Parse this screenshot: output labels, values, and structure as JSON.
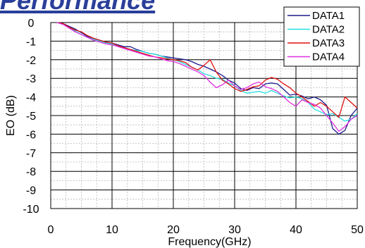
{
  "title_fragment": "Performance",
  "chart_data": {
    "type": "line",
    "xlabel": "Frequency(GHz)",
    "ylabel": "EO (dB)",
    "xlim": [
      0,
      50
    ],
    "ylim": [
      -10,
      0
    ],
    "xticks": [
      0,
      10,
      20,
      30,
      40,
      50
    ],
    "yticks": [
      0,
      -1,
      -2,
      -3,
      -4,
      -5,
      -6,
      -7,
      -8,
      -9,
      -10
    ],
    "x_minor_step": 2.5,
    "y_minor_step": 0.5,
    "grid": true,
    "legend_position": "top-right",
    "series": [
      {
        "name": "DATA1",
        "color": "#1c1c8c",
        "x": [
          1,
          2,
          3,
          4,
          5,
          6,
          7,
          8,
          9,
          10,
          11,
          12,
          13,
          14,
          15,
          16,
          17,
          18,
          19,
          20,
          21,
          22,
          23,
          24,
          25,
          26,
          27,
          28,
          29,
          30,
          31,
          32,
          33,
          34,
          35,
          36,
          37,
          38,
          39,
          40,
          41,
          42,
          43,
          44,
          45,
          46,
          47,
          48,
          49,
          50
        ],
        "y": [
          0,
          -0.05,
          -0.2,
          -0.35,
          -0.55,
          -0.75,
          -0.85,
          -0.95,
          -1.05,
          -1.1,
          -1.2,
          -1.3,
          -1.3,
          -1.45,
          -1.55,
          -1.65,
          -1.7,
          -1.8,
          -1.85,
          -1.9,
          -1.95,
          -2.0,
          -2.1,
          -2.25,
          -2.35,
          -2.5,
          -2.65,
          -2.85,
          -3.1,
          -3.25,
          -3.55,
          -3.65,
          -3.5,
          -3.55,
          -3.3,
          -3.25,
          -3.3,
          -3.6,
          -3.9,
          -3.85,
          -3.95,
          -4.1,
          -4.0,
          -4.15,
          -4.45,
          -5.7,
          -6.0,
          -5.8,
          -5.0,
          -4.6
        ]
      },
      {
        "name": "DATA2",
        "color": "#22dede",
        "x": [
          1,
          2,
          3,
          4,
          5,
          6,
          7,
          8,
          9,
          10,
          11,
          12,
          13,
          14,
          15,
          16,
          17,
          18,
          19,
          20,
          21,
          22,
          23,
          24,
          25,
          26,
          27,
          28,
          29,
          30,
          31,
          32,
          33,
          34,
          35,
          36,
          37,
          38,
          39,
          40,
          41,
          42,
          43,
          44,
          45,
          46,
          47,
          48,
          49,
          50
        ],
        "y": [
          0,
          -0.1,
          -0.25,
          -0.45,
          -0.65,
          -0.8,
          -0.9,
          -1.0,
          -1.1,
          -1.15,
          -1.25,
          -1.35,
          -1.45,
          -1.5,
          -1.55,
          -1.65,
          -1.7,
          -1.8,
          -1.9,
          -2.0,
          -2.1,
          -2.25,
          -2.4,
          -2.55,
          -2.75,
          -2.85,
          -3.0,
          -3.05,
          -3.25,
          -3.4,
          -3.65,
          -3.8,
          -3.75,
          -3.7,
          -3.8,
          -3.65,
          -3.8,
          -3.95,
          -4.05,
          -4.0,
          -4.1,
          -4.3,
          -4.65,
          -4.8,
          -4.95,
          -4.9,
          -5.1,
          -5.3,
          -5.2,
          -4.9
        ]
      },
      {
        "name": "DATA3",
        "color": "#e01010",
        "x": [
          1,
          2,
          3,
          4,
          5,
          6,
          7,
          8,
          9,
          10,
          11,
          12,
          13,
          14,
          15,
          16,
          17,
          18,
          19,
          20,
          21,
          22,
          23,
          24,
          25,
          26,
          27,
          28,
          29,
          30,
          31,
          32,
          33,
          34,
          35,
          36,
          37,
          38,
          39,
          40,
          41,
          42,
          43,
          44,
          45,
          46,
          47,
          48,
          49,
          50
        ],
        "y": [
          0,
          -0.05,
          -0.25,
          -0.4,
          -0.5,
          -0.7,
          -0.85,
          -0.95,
          -1.05,
          -1.1,
          -1.25,
          -1.35,
          -1.45,
          -1.55,
          -1.65,
          -1.75,
          -1.85,
          -1.9,
          -1.95,
          -2.0,
          -2.05,
          -2.15,
          -2.4,
          -2.55,
          -2.3,
          -2.0,
          -2.65,
          -3.1,
          -3.3,
          -3.55,
          -3.7,
          -3.6,
          -3.45,
          -3.4,
          -3.1,
          -2.95,
          -3.05,
          -3.3,
          -3.5,
          -3.8,
          -4.0,
          -4.25,
          -4.5,
          -4.3,
          -4.5,
          -4.8,
          -5.1,
          -4.0,
          -4.3,
          -4.6
        ]
      },
      {
        "name": "DATA4",
        "color": "#e030e0",
        "x": [
          1,
          2,
          3,
          4,
          5,
          6,
          7,
          8,
          9,
          10,
          11,
          12,
          13,
          14,
          15,
          16,
          17,
          18,
          19,
          20,
          21,
          22,
          23,
          24,
          25,
          26,
          27,
          28,
          29,
          30,
          31,
          32,
          33,
          34,
          35,
          36,
          37,
          38,
          39,
          40,
          41,
          42,
          43,
          44,
          45,
          46,
          47,
          48,
          49,
          50
        ],
        "y": [
          0,
          -0.1,
          -0.3,
          -0.5,
          -0.65,
          -0.8,
          -0.95,
          -1.05,
          -1.15,
          -1.2,
          -1.3,
          -1.4,
          -1.5,
          -1.6,
          -1.7,
          -1.8,
          -1.85,
          -1.95,
          -2.05,
          -2.1,
          -2.2,
          -2.35,
          -2.5,
          -2.65,
          -2.85,
          -3.2,
          -3.5,
          -3.35,
          -3.1,
          -3.4,
          -3.6,
          -3.5,
          -3.3,
          -3.2,
          -3.45,
          -3.55,
          -3.7,
          -4.0,
          -4.3,
          -4.5,
          -4.15,
          -4.3,
          -4.4,
          -4.6,
          -5.0,
          -5.4,
          -5.85,
          -5.6,
          -5.2,
          -5.0
        ]
      }
    ]
  }
}
